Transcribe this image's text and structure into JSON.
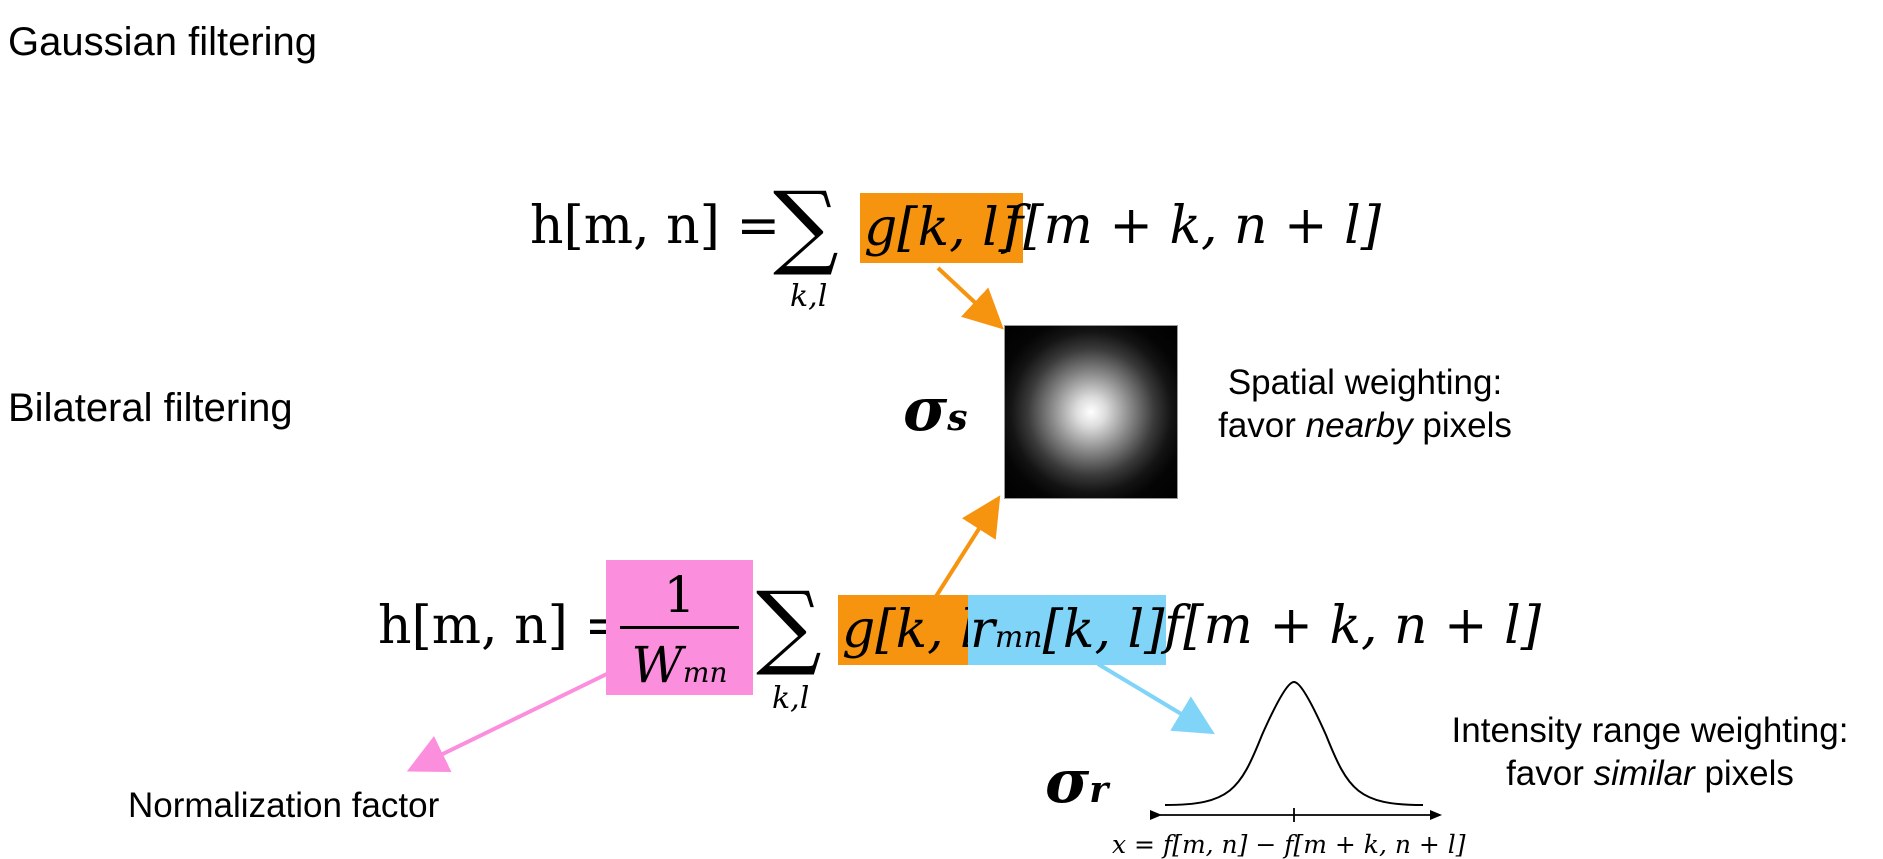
{
  "titles": {
    "gaussian": "Gaussian filtering",
    "bilateral": "Bilateral filtering"
  },
  "gaussian_eq": {
    "lhs": "h[m, n] =",
    "sum_under": "k,l",
    "g_term": "g[k, l]",
    "f_term": "f[m + k, n + l]"
  },
  "bilateral_eq": {
    "lhs": "h[m, n] =",
    "frac_num": "1",
    "frac_den": "W",
    "frac_den_sub": "mn",
    "sum_under": "k,l",
    "g_term": "g[k, l]",
    "r_term_base": "r",
    "r_term_sub": "mn",
    "r_term_args": "[k, l]",
    "f_term": "f[m + k, n + l]"
  },
  "sigma_s": {
    "symbol": "σ",
    "sub": "s"
  },
  "sigma_r": {
    "symbol": "σ",
    "sub": "r"
  },
  "annotations": {
    "spatial_line1": "Spatial weighting:",
    "spatial_line2_pre": "favor ",
    "spatial_line2_em": "nearby",
    "spatial_line2_post": " pixels",
    "range_line1": "Intensity range weighting:",
    "range_line2_pre": "favor ",
    "range_line2_em": "similar",
    "range_line2_post": " pixels",
    "normalization": "Normalization factor",
    "x_axis": "x = f[m, n] − f[m + k, n + l]"
  },
  "colors": {
    "orange": "#f7940f",
    "blue": "#7fd4f7",
    "pink": "#fb8fdd"
  }
}
